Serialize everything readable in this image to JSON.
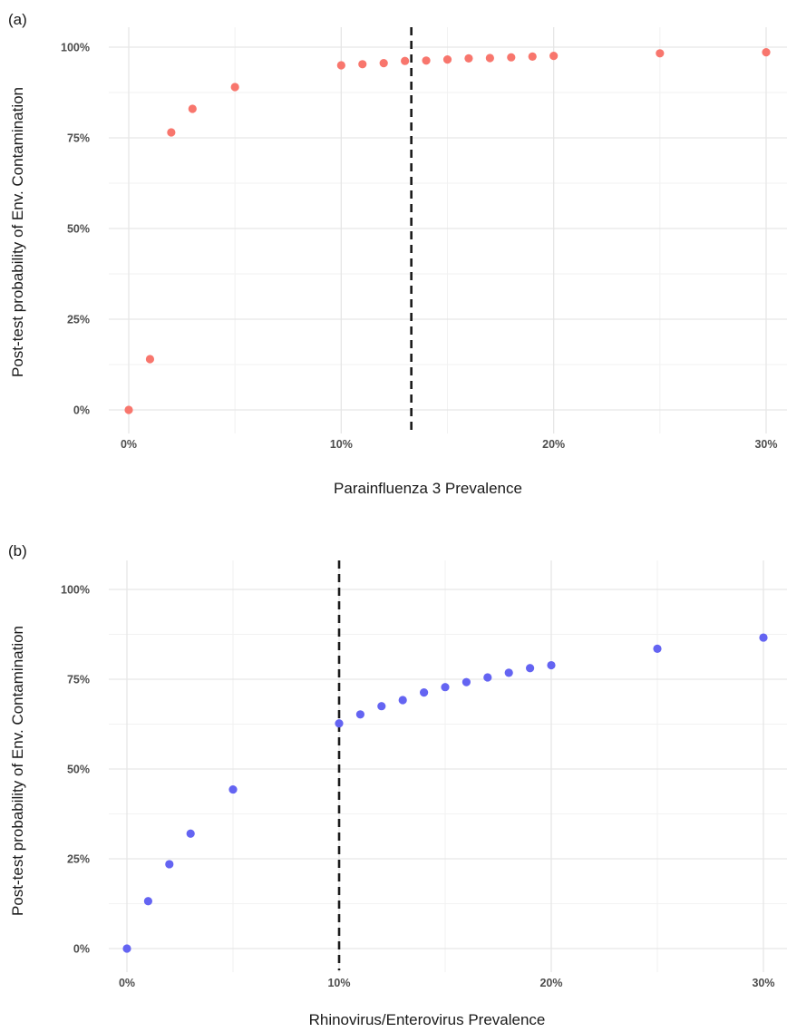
{
  "chart_data": [
    {
      "type": "scatter",
      "panel_label": "(a)",
      "xlabel": "Parainfluenza 3 Prevalence",
      "ylabel": "Post-test probability of Env. Contamination",
      "xlim": [
        0,
        30
      ],
      "ylim": [
        0,
        100
      ],
      "x_ticks": [
        0,
        10,
        20,
        30
      ],
      "x_tick_labels": [
        "0%",
        "10%",
        "20%",
        "30%"
      ],
      "y_ticks": [
        0,
        25,
        50,
        75,
        100
      ],
      "y_tick_labels": [
        "0%",
        "25%",
        "50%",
        "75%",
        "100%"
      ],
      "grid": true,
      "reference_line_x": 13.3,
      "point_color": "#f8766d",
      "series": [
        {
          "x": [
            0,
            1,
            2,
            3,
            5,
            10,
            11,
            12,
            13,
            14,
            15,
            16,
            17,
            18,
            19,
            20,
            25,
            30
          ],
          "y": [
            0,
            14,
            76.5,
            83,
            89,
            95,
            95.3,
            95.6,
            96.2,
            96.3,
            96.6,
            96.9,
            97,
            97.2,
            97.4,
            97.6,
            98.3,
            98.6
          ]
        }
      ]
    },
    {
      "type": "scatter",
      "panel_label": "(b)",
      "xlabel": "Rhinovirus/Enterovirus Prevalence",
      "ylabel": "Post-test probability of Env. Contamination",
      "xlim": [
        0,
        30
      ],
      "ylim": [
        0,
        100
      ],
      "x_ticks": [
        0,
        10,
        20,
        30
      ],
      "x_tick_labels": [
        "0%",
        "10%",
        "20%",
        "30%"
      ],
      "y_ticks": [
        0,
        25,
        50,
        75,
        100
      ],
      "y_tick_labels": [
        "0%",
        "25%",
        "50%",
        "75%",
        "100%"
      ],
      "grid": true,
      "reference_line_x": 10,
      "point_color": "#6464f2",
      "series": [
        {
          "x": [
            0,
            1,
            2,
            3,
            5,
            10,
            11,
            12,
            13,
            14,
            15,
            16,
            17,
            18,
            19,
            20,
            25,
            30
          ],
          "y": [
            0,
            13.2,
            23.5,
            32,
            44.3,
            62.7,
            65.2,
            67.5,
            69.2,
            71.3,
            72.8,
            74.2,
            75.5,
            76.8,
            78.1,
            78.9,
            83.5,
            86.6
          ]
        }
      ]
    }
  ]
}
